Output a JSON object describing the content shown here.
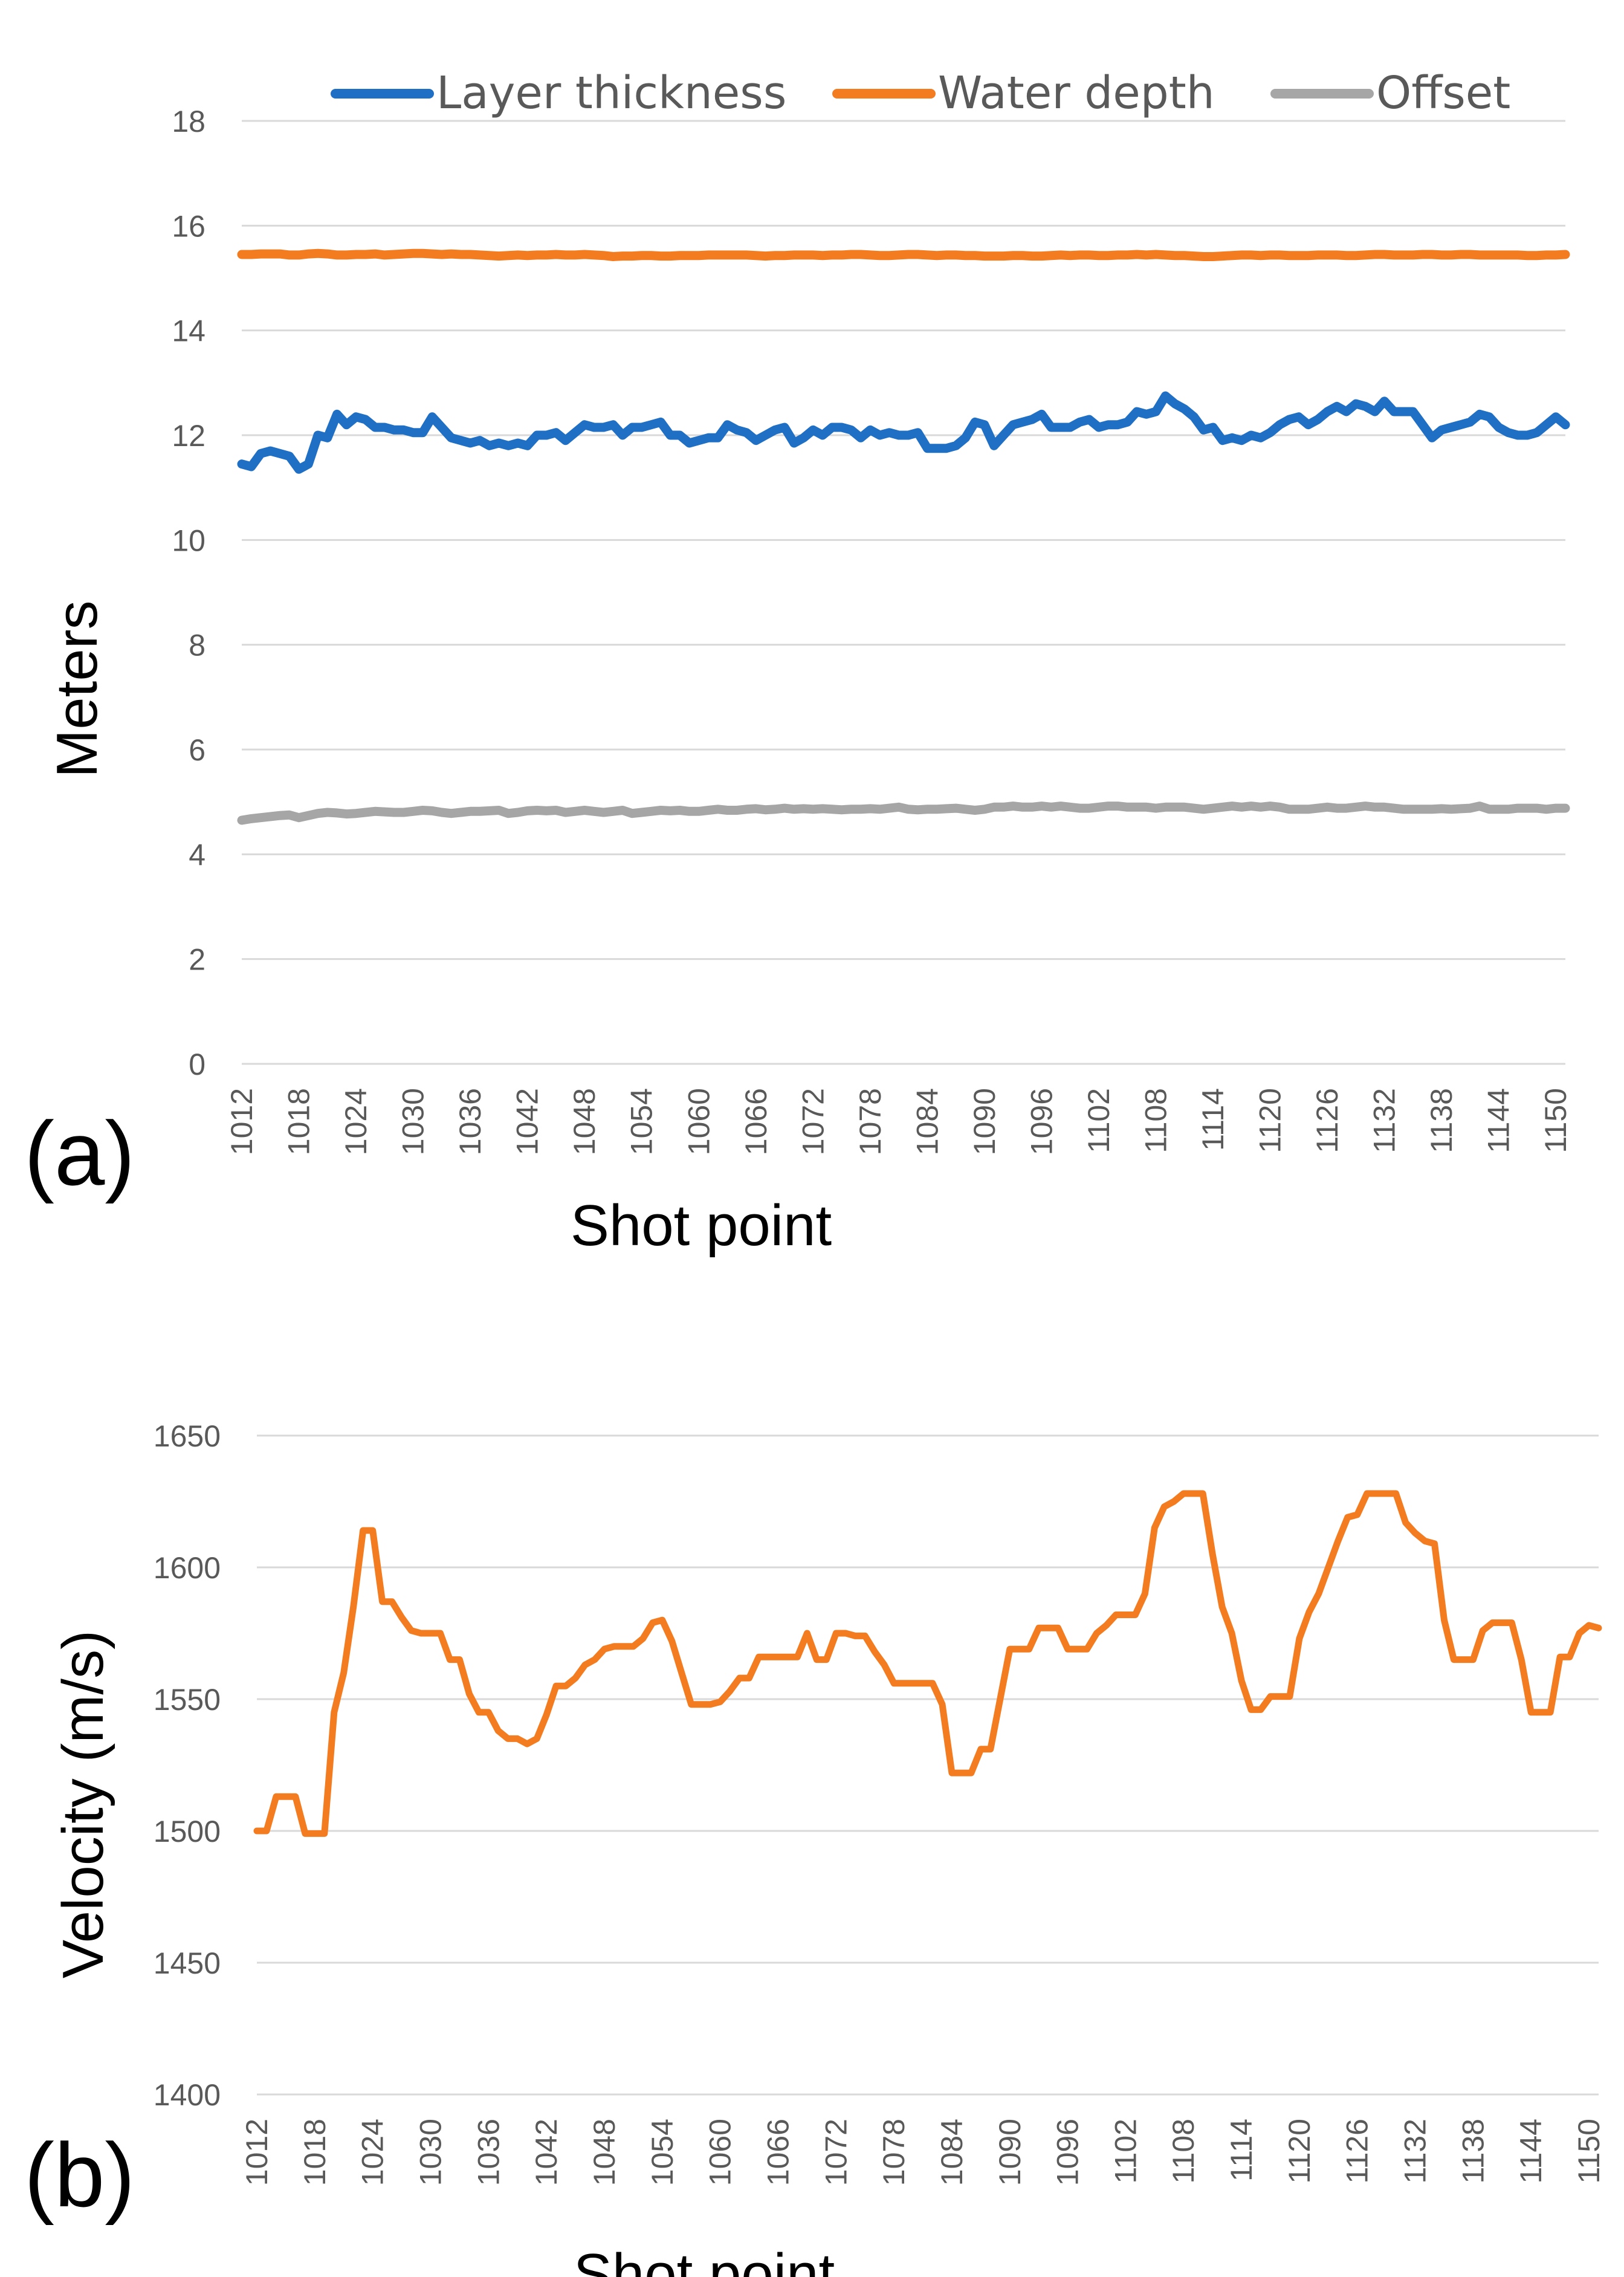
{
  "chart_data": [
    {
      "type": "line",
      "panel_label": "(a)",
      "xlabel": "Shot point",
      "ylabel": "Meters",
      "ylim": [
        0,
        18
      ],
      "yticks": [
        "0",
        "2",
        "4",
        "6",
        "8",
        "10",
        "12",
        "14",
        "16",
        "18"
      ],
      "xlim": [
        1012,
        1151
      ],
      "xticks": [
        "1012",
        "1018",
        "1024",
        "1030",
        "1036",
        "1042",
        "1048",
        "1054",
        "1060",
        "1066",
        "1072",
        "1078",
        "1084",
        "1090",
        "1096",
        "1102",
        "1108",
        "1114",
        "1120",
        "1126",
        "1132",
        "1138",
        "1144",
        "1150"
      ],
      "legend_position": "top",
      "x": [
        1012,
        1013,
        1014,
        1015,
        1016,
        1017,
        1018,
        1019,
        1020,
        1021,
        1022,
        1023,
        1024,
        1025,
        1026,
        1027,
        1028,
        1029,
        1030,
        1031,
        1032,
        1033,
        1034,
        1035,
        1036,
        1037,
        1038,
        1039,
        1040,
        1041,
        1042,
        1043,
        1044,
        1045,
        1046,
        1047,
        1048,
        1049,
        1050,
        1051,
        1052,
        1053,
        1054,
        1055,
        1056,
        1057,
        1058,
        1059,
        1060,
        1061,
        1062,
        1063,
        1064,
        1065,
        1066,
        1067,
        1068,
        1069,
        1070,
        1071,
        1072,
        1073,
        1074,
        1075,
        1076,
        1077,
        1078,
        1079,
        1080,
        1081,
        1082,
        1083,
        1084,
        1085,
        1086,
        1087,
        1088,
        1089,
        1090,
        1091,
        1092,
        1093,
        1094,
        1095,
        1096,
        1097,
        1098,
        1099,
        1100,
        1101,
        1102,
        1103,
        1104,
        1105,
        1106,
        1107,
        1108,
        1109,
        1110,
        1111,
        1112,
        1113,
        1114,
        1115,
        1116,
        1117,
        1118,
        1119,
        1120,
        1121,
        1122,
        1123,
        1124,
        1125,
        1126,
        1127,
        1128,
        1129,
        1130,
        1131,
        1132,
        1133,
        1134,
        1135,
        1136,
        1137,
        1138,
        1139,
        1140,
        1141,
        1142,
        1143,
        1144,
        1145,
        1146,
        1147,
        1148,
        1149,
        1150,
        1151
      ],
      "series": [
        {
          "name": "Layer thickness",
          "color": "#1f6fc5",
          "values": [
            11.45,
            11.4,
            11.65,
            11.7,
            11.65,
            11.6,
            11.35,
            11.45,
            12.0,
            11.95,
            12.4,
            12.2,
            12.35,
            12.3,
            12.15,
            12.15,
            12.1,
            12.1,
            12.05,
            12.05,
            12.35,
            12.15,
            11.95,
            11.9,
            11.85,
            11.9,
            11.8,
            11.85,
            11.8,
            11.85,
            11.8,
            12.0,
            12.0,
            12.05,
            11.9,
            12.05,
            12.2,
            12.15,
            12.15,
            12.2,
            12.0,
            12.15,
            12.15,
            12.2,
            12.25,
            12.0,
            12.0,
            11.85,
            11.9,
            11.95,
            11.95,
            12.2,
            12.1,
            12.05,
            11.9,
            12.0,
            12.1,
            12.15,
            11.85,
            11.95,
            12.1,
            12.0,
            12.15,
            12.15,
            12.1,
            11.95,
            12.1,
            12.0,
            12.05,
            12.0,
            12.0,
            12.05,
            11.75,
            11.75,
            11.75,
            11.8,
            11.95,
            12.25,
            12.2,
            11.8,
            12.0,
            12.2,
            12.25,
            12.3,
            12.4,
            12.15,
            12.15,
            12.15,
            12.25,
            12.3,
            12.15,
            12.2,
            12.2,
            12.25,
            12.45,
            12.4,
            12.45,
            12.75,
            12.6,
            12.5,
            12.35,
            12.1,
            12.15,
            11.9,
            11.95,
            11.9,
            12.0,
            11.95,
            12.05,
            12.2,
            12.3,
            12.35,
            12.2,
            12.3,
            12.45,
            12.55,
            12.45,
            12.6,
            12.55,
            12.45,
            12.65,
            12.45,
            12.45,
            12.45,
            12.2,
            11.95,
            12.1,
            12.15,
            12.2,
            12.25,
            12.4,
            12.35,
            12.15,
            12.05,
            12.0,
            12.0,
            12.05,
            12.2,
            12.35,
            12.2
          ],
          "values_tail": [
            12.35,
            12.3
          ]
        },
        {
          "name": "Water depth",
          "color": "#f47c20",
          "values": [
            15.45,
            15.45,
            15.46,
            15.46,
            15.46,
            15.44,
            15.44,
            15.46,
            15.47,
            15.46,
            15.44,
            15.44,
            15.45,
            15.45,
            15.46,
            15.44,
            15.45,
            15.46,
            15.47,
            15.47,
            15.46,
            15.45,
            15.46,
            15.45,
            15.45,
            15.44,
            15.43,
            15.42,
            15.43,
            15.44,
            15.43,
            15.44,
            15.44,
            15.45,
            15.44,
            15.44,
            15.45,
            15.44,
            15.43,
            15.41,
            15.42,
            15.42,
            15.43,
            15.43,
            15.42,
            15.42,
            15.43,
            15.43,
            15.43,
            15.44,
            15.44,
            15.44,
            15.44,
            15.44,
            15.43,
            15.42,
            15.43,
            15.43,
            15.44,
            15.44,
            15.44,
            15.43,
            15.44,
            15.44,
            15.45,
            15.45,
            15.44,
            15.43,
            15.43,
            15.44,
            15.45,
            15.45,
            15.44,
            15.43,
            15.44,
            15.44,
            15.43,
            15.43,
            15.42,
            15.42,
            15.42,
            15.43,
            15.43,
            15.42,
            15.42,
            15.43,
            15.44,
            15.43,
            15.44,
            15.44,
            15.43,
            15.43,
            15.44,
            15.44,
            15.45,
            15.44,
            15.45,
            15.44,
            15.43,
            15.43,
            15.42,
            15.41,
            15.41,
            15.42,
            15.43,
            15.44,
            15.44,
            15.43,
            15.44,
            15.44,
            15.43,
            15.43,
            15.43,
            15.44,
            15.44,
            15.44,
            15.43,
            15.43,
            15.44,
            15.45,
            15.45,
            15.44,
            15.44,
            15.44,
            15.45,
            15.45,
            15.44,
            15.44,
            15.45,
            15.45,
            15.44,
            15.44,
            15.44,
            15.44,
            15.44,
            15.43,
            15.43,
            15.44,
            15.44,
            15.45
          ]
        },
        {
          "name": "Offset",
          "color": "#a6a6a6",
          "values": [
            4.65,
            4.68,
            4.7,
            4.72,
            4.74,
            4.75,
            4.7,
            4.74,
            4.78,
            4.8,
            4.79,
            4.77,
            4.78,
            4.8,
            4.82,
            4.81,
            4.8,
            4.8,
            4.82,
            4.84,
            4.83,
            4.8,
            4.78,
            4.8,
            4.82,
            4.82,
            4.83,
            4.84,
            4.78,
            4.8,
            4.83,
            4.84,
            4.83,
            4.84,
            4.8,
            4.82,
            4.84,
            4.82,
            4.8,
            4.82,
            4.84,
            4.78,
            4.8,
            4.82,
            4.84,
            4.83,
            4.84,
            4.82,
            4.82,
            4.84,
            4.86,
            4.84,
            4.84,
            4.86,
            4.87,
            4.85,
            4.86,
            4.88,
            4.86,
            4.87,
            4.86,
            4.87,
            4.86,
            4.85,
            4.86,
            4.86,
            4.87,
            4.86,
            4.88,
            4.9,
            4.86,
            4.85,
            4.86,
            4.86,
            4.87,
            4.88,
            4.86,
            4.84,
            4.86,
            4.9,
            4.9,
            4.92,
            4.9,
            4.9,
            4.92,
            4.9,
            4.92,
            4.9,
            4.88,
            4.88,
            4.9,
            4.92,
            4.92,
            4.9,
            4.9,
            4.9,
            4.88,
            4.9,
            4.9,
            4.9,
            4.88,
            4.86,
            4.88,
            4.9,
            4.92,
            4.9,
            4.92,
            4.9,
            4.92,
            4.9,
            4.86,
            4.86,
            4.86,
            4.88,
            4.9,
            4.88,
            4.88,
            4.9,
            4.92,
            4.9,
            4.9,
            4.88,
            4.86,
            4.86,
            4.86,
            4.86,
            4.87,
            4.86,
            4.87,
            4.88,
            4.92,
            4.86,
            4.86,
            4.86,
            4.88,
            4.88,
            4.88,
            4.86,
            4.88,
            4.88
          ]
        }
      ]
    },
    {
      "type": "line",
      "panel_label": "(b)",
      "xlabel": "Shot point",
      "ylabel": "Velocity (m/s)",
      "ylim": [
        1400,
        1650
      ],
      "yticks": [
        "1400",
        "1450",
        "1500",
        "1550",
        "1600",
        "1650"
      ],
      "xlim": [
        1012,
        1151
      ],
      "xticks": [
        "1012",
        "1018",
        "1024",
        "1030",
        "1036",
        "1042",
        "1048",
        "1054",
        "1060",
        "1066",
        "1072",
        "1078",
        "1084",
        "1090",
        "1096",
        "1102",
        "1108",
        "1114",
        "1120",
        "1126",
        "1132",
        "1138",
        "1144",
        "1150"
      ],
      "series": [
        {
          "name": "Velocity",
          "color": "#f47c20",
          "x": [
            1012,
            1013,
            1014,
            1015,
            1016,
            1017,
            1018,
            1019,
            1020,
            1021,
            1022,
            1023,
            1024,
            1025,
            1026,
            1027,
            1028,
            1029,
            1030,
            1031,
            1032,
            1033,
            1034,
            1035,
            1036,
            1037,
            1038,
            1039,
            1040,
            1041,
            1042,
            1043,
            1044,
            1045,
            1046,
            1047,
            1048,
            1049,
            1050,
            1051,
            1052,
            1053,
            1054,
            1055,
            1056,
            1057,
            1058,
            1059,
            1060,
            1061,
            1062,
            1063,
            1064,
            1065,
            1066,
            1067,
            1068,
            1069,
            1070,
            1071,
            1072,
            1073,
            1074,
            1075,
            1076,
            1077,
            1078,
            1079,
            1080,
            1081,
            1082,
            1083,
            1084,
            1085,
            1086,
            1087,
            1088,
            1089,
            1090,
            1091,
            1092,
            1093,
            1094,
            1095,
            1096,
            1097,
            1098,
            1099,
            1100,
            1101,
            1102,
            1103,
            1104,
            1105,
            1106,
            1107,
            1108,
            1109,
            1110,
            1111,
            1112,
            1113,
            1114,
            1115,
            1116,
            1117,
            1118,
            1119,
            1120,
            1121,
            1122,
            1123,
            1124,
            1125,
            1126,
            1127,
            1128,
            1129,
            1130,
            1131,
            1132,
            1133,
            1134,
            1135,
            1136,
            1137,
            1138,
            1139,
            1140,
            1141,
            1142,
            1143,
            1144,
            1145,
            1146,
            1147,
            1148,
            1149,
            1150,
            1151
          ],
          "values": [
            1500,
            1500,
            1513,
            1513,
            1513,
            1499,
            1499,
            1499,
            1545,
            1560,
            1585,
            1614,
            1614,
            1587,
            1587,
            1581,
            1576,
            1575,
            1575,
            1575,
            1565,
            1565,
            1552,
            1545,
            1545,
            1538,
            1535,
            1535,
            1533,
            1535,
            1544,
            1555,
            1555,
            1558,
            1563,
            1565,
            1569,
            1570,
            1570,
            1570,
            1573,
            1579,
            1580,
            1572,
            1560,
            1548,
            1548,
            1548,
            1549,
            1553,
            1558,
            1558,
            1566,
            1566,
            1566,
            1566,
            1566,
            1575,
            1565,
            1565,
            1575,
            1575,
            1574,
            1574,
            1568,
            1563,
            1556,
            1556,
            1556,
            1556,
            1556,
            1548,
            1522,
            1522,
            1522,
            1531,
            1531,
            1550,
            1569,
            1569,
            1569,
            1577,
            1577,
            1577,
            1569,
            1569,
            1569,
            1575,
            1578,
            1582,
            1582,
            1582,
            1590,
            1615,
            1623,
            1625,
            1628,
            1628,
            1628,
            1605,
            1585,
            1575,
            1557,
            1546,
            1546,
            1551,
            1551,
            1551,
            1573,
            1583,
            1590,
            1600,
            1610,
            1619,
            1620,
            1628,
            1628,
            1628,
            1628,
            1617,
            1613,
            1610,
            1609,
            1580,
            1565,
            1565,
            1565,
            1576,
            1579,
            1579,
            1579,
            1565,
            1545,
            1545,
            1545,
            1566,
            1566,
            1575,
            1578,
            1577
          ]
        }
      ]
    }
  ]
}
